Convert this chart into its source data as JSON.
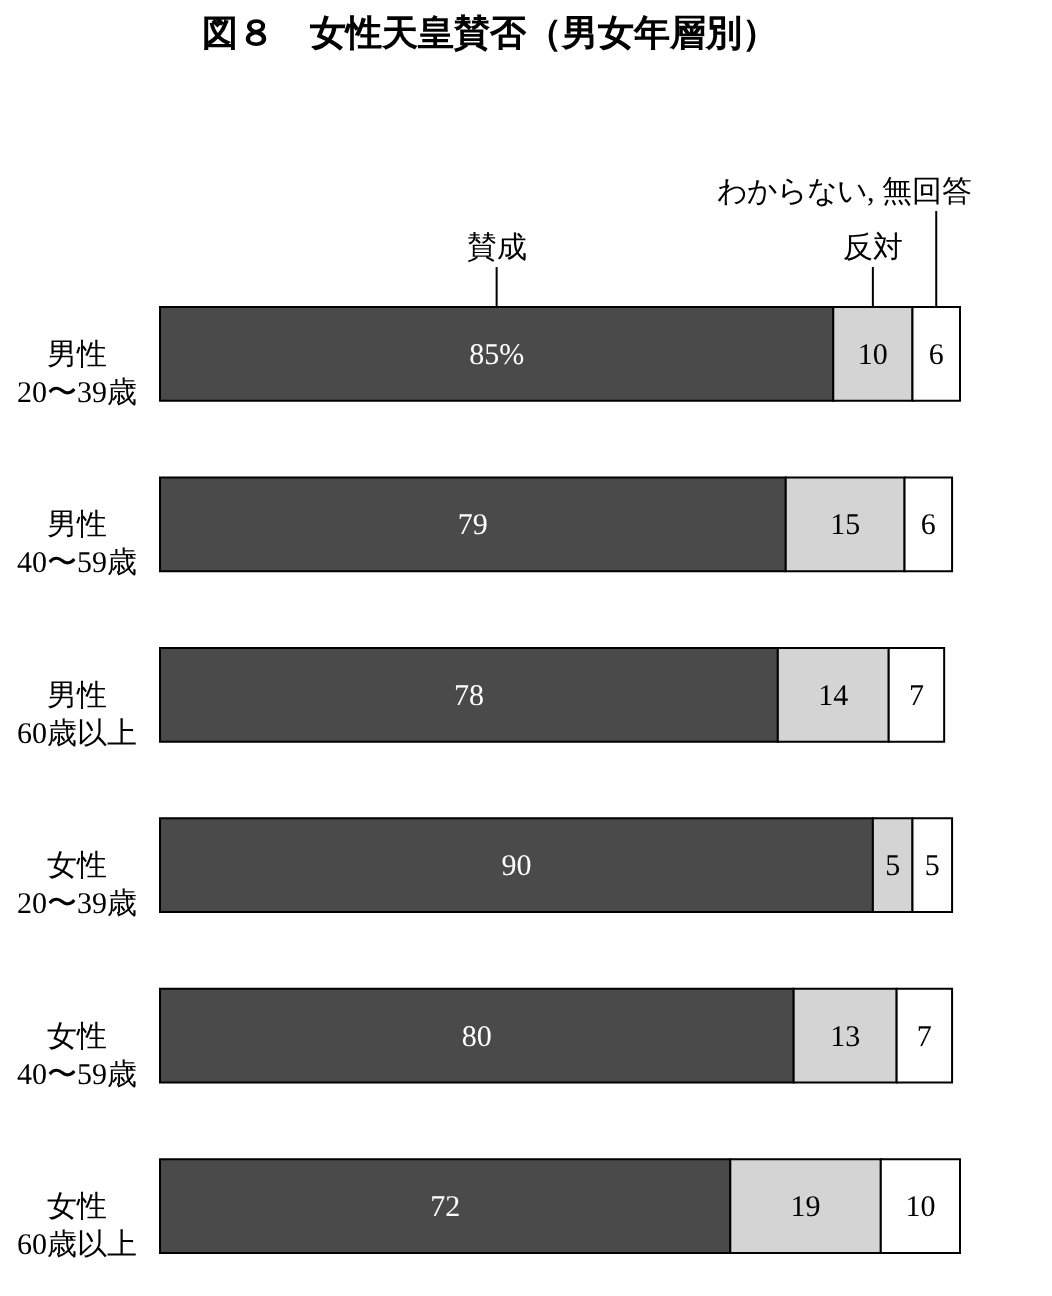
{
  "chart_data": {
    "type": "bar",
    "orientation": "horizontal",
    "stacked": true,
    "title": "図８　女性天皇賛否（男女年層別）",
    "categories": [
      "男性\n20〜39歳",
      "男性\n40〜59歳",
      "男性\n60歳以上",
      "女性\n20〜39歳",
      "女性\n40〜59歳",
      "女性\n60歳以上"
    ],
    "series": [
      {
        "name": "賛成",
        "color": "#4a4a4a",
        "values": [
          85,
          79,
          78,
          90,
          80,
          72
        ],
        "value_labels": [
          "85%",
          "79",
          "78",
          "90",
          "80",
          "72"
        ]
      },
      {
        "name": "反対",
        "color": "#d4d4d4",
        "values": [
          10,
          15,
          14,
          5,
          13,
          19
        ],
        "value_labels": [
          "10",
          "15",
          "14",
          "5",
          "13",
          "19"
        ]
      },
      {
        "name": "わからない, 無回答",
        "color": "#ffffff",
        "values": [
          6,
          6,
          7,
          5,
          7,
          10
        ],
        "value_labels": [
          "6",
          "6",
          "7",
          "5",
          "7",
          "10"
        ]
      }
    ],
    "legend": false
  }
}
